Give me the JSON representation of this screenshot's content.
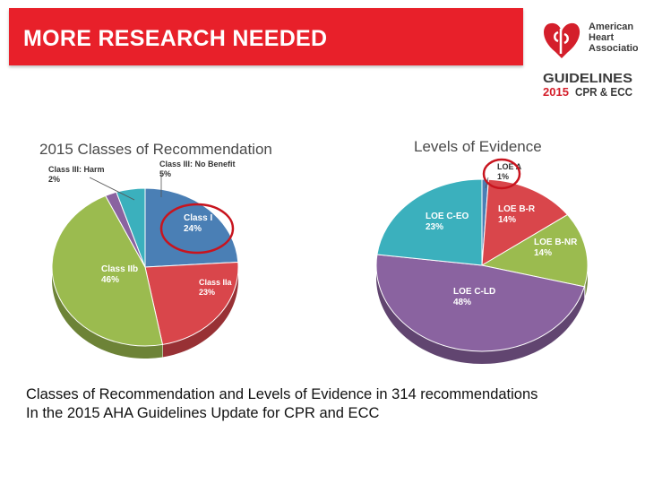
{
  "header": {
    "title": "MORE RESEARCH NEEDED",
    "brand_color": "#e8202a"
  },
  "logo": {
    "org_line1": "American",
    "org_line2": "Heart",
    "org_line3": "Association",
    "guidelines": "GUIDELINES",
    "year": "2015",
    "subtitle": "CPR & ECC",
    "icon": "heart-torch-icon"
  },
  "caption": {
    "line1": "Classes of Recommendation and Levels of Evidence in 314 recommendations",
    "line2": "In the 2015 AHA Guidelines Update for CPR and ECC"
  },
  "chart_data": [
    {
      "type": "pie",
      "title": "2015 Classes of Recommendation",
      "slices": [
        {
          "label": "Class I",
          "display": "24%",
          "value": 24,
          "color": "#4a7fb5",
          "highlighted": true
        },
        {
          "label": "Class IIa",
          "display": "23%",
          "value": 23,
          "color": "#d9464b"
        },
        {
          "label": "Class IIb",
          "display": "46%",
          "value": 46,
          "color": "#9bbb4f"
        },
        {
          "label": "Class III: Harm",
          "display": "2%",
          "value": 2,
          "color": "#8a63a0"
        },
        {
          "label": "Class III: No Benefit",
          "display": "5%",
          "value": 5,
          "color": "#3bb0bd"
        }
      ]
    },
    {
      "type": "pie",
      "title": "Levels of Evidence",
      "slices": [
        {
          "label": "LOE A",
          "display": "1%",
          "value": 1,
          "color": "#4a7fb5",
          "highlighted": true
        },
        {
          "label": "LOE B-R",
          "display": "14%",
          "value": 14,
          "color": "#d9464b"
        },
        {
          "label": "LOE B-NR",
          "display": "14%",
          "value": 14,
          "color": "#9bbb4f"
        },
        {
          "label": "LOE C-LD",
          "display": "48%",
          "value": 48,
          "color": "#8a63a0"
        },
        {
          "label": "LOE C-EO",
          "display": "23%",
          "value": 23,
          "color": "#3bb0bd"
        }
      ]
    }
  ]
}
